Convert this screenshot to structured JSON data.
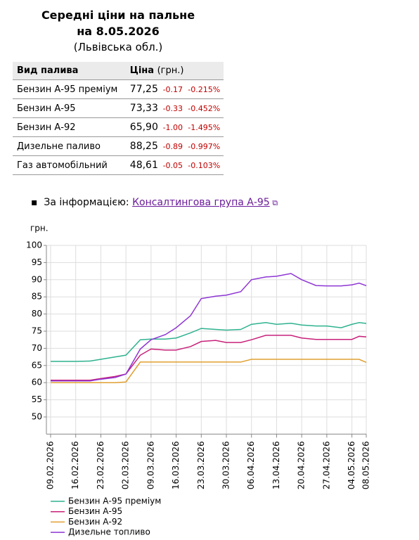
{
  "header": {
    "title": "Середні ціни на пальне",
    "date": "на 8.05.2026",
    "region": "(Львівська обл.)"
  },
  "table": {
    "headers": [
      "Вид палива",
      "Ціна",
      "(грн.)"
    ],
    "rows": [
      [
        "Бензин А-95 преміум",
        "77,25",
        "-0.17",
        "-0.215%"
      ],
      [
        "Бензин А-95",
        "73,33",
        "-0.33",
        "-0.452%"
      ],
      [
        "Бензин А-92",
        "65,90",
        "-1.00",
        "-1.495%"
      ],
      [
        "Дизельне паливо",
        "88,25",
        "-0.89",
        "-0.997%"
      ],
      [
        "Газ автомобільний",
        "48,61",
        "-0.05",
        "-0.103%"
      ]
    ]
  },
  "source": {
    "label": "За інформацією:",
    "link": "Консалтингова група А-95"
  },
  "chart_data": {
    "type": "line",
    "y_label": "грн.",
    "x": [
      "09.02.2026",
      "13.02.2026",
      "16.02.2026",
      "20.02.2026",
      "23.02.2026",
      "27.02.2026",
      "02.03.2026",
      "06.03.2026",
      "09.03.2026",
      "13.03.2026",
      "16.03.2026",
      "20.03.2026",
      "23.03.2026",
      "27.03.2026",
      "30.03.2026",
      "03.04.2026",
      "06.04.2026",
      "10.04.2026",
      "13.04.2026",
      "17.04.2026",
      "20.04.2026",
      "24.04.2026",
      "27.04.2026",
      "01.05.2026",
      "04.05.2026",
      "06.05.2026",
      "08.05.2026"
    ],
    "xlim": [
      "09.02.2026",
      "08.05.2026"
    ],
    "xticks": [
      "09.02.2026",
      "16.02.2026",
      "23.02.2026",
      "02.03.2026",
      "09.03.2026",
      "16.03.2026",
      "23.03.2026",
      "30.03.2026",
      "06.04.2026",
      "13.04.2026",
      "20.04.2026",
      "27.04.2026",
      "04.05.2026",
      "08.05.2026"
    ],
    "ylim": [
      45,
      100
    ],
    "yticks": [
      50,
      55,
      60,
      65,
      70,
      75,
      80,
      85,
      90,
      95,
      100
    ],
    "grid": true,
    "series": [
      {
        "name": "Бензин А-95 преміум",
        "color": "#2eb28f",
        "values": [
          66.2,
          66.2,
          66.2,
          66.3,
          66.8,
          67.5,
          68,
          72.5,
          72.7,
          72.7,
          73,
          74.5,
          75.8,
          75.5,
          75.3,
          75.5,
          77,
          77.5,
          77,
          77.3,
          76.8,
          76.5,
          76.5,
          76,
          77,
          77.5,
          77.25
        ]
      },
      {
        "name": "Бензин А-95",
        "color": "#c8207a",
        "values": [
          60.7,
          60.7,
          60.7,
          60.7,
          61.2,
          61.8,
          62.5,
          68,
          69.8,
          69.5,
          69.5,
          70.5,
          72,
          72.3,
          71.7,
          71.7,
          72.5,
          73.8,
          73.8,
          73.8,
          73,
          72.6,
          72.6,
          72.6,
          72.6,
          73.5,
          73.33
        ]
      },
      {
        "name": "Бензин А-92",
        "color": "#e0a030",
        "values": [
          60,
          60,
          60,
          60,
          60,
          60,
          60.2,
          66,
          66,
          66,
          66,
          66,
          66,
          66,
          66,
          66,
          66.8,
          66.8,
          66.8,
          66.8,
          66.8,
          66.8,
          66.8,
          66.8,
          66.8,
          66.8,
          65.9
        ]
      },
      {
        "name": "Дизельне топливо",
        "color": "#8e35d4",
        "values": [
          60.5,
          60.5,
          60.5,
          60.5,
          61,
          61.5,
          62.5,
          69.8,
          72.5,
          74,
          76,
          79.5,
          84.5,
          85.2,
          85.5,
          86.5,
          90,
          90.8,
          91,
          91.8,
          90,
          88.3,
          88.2,
          88.2,
          88.5,
          89,
          88.25
        ]
      }
    ]
  }
}
